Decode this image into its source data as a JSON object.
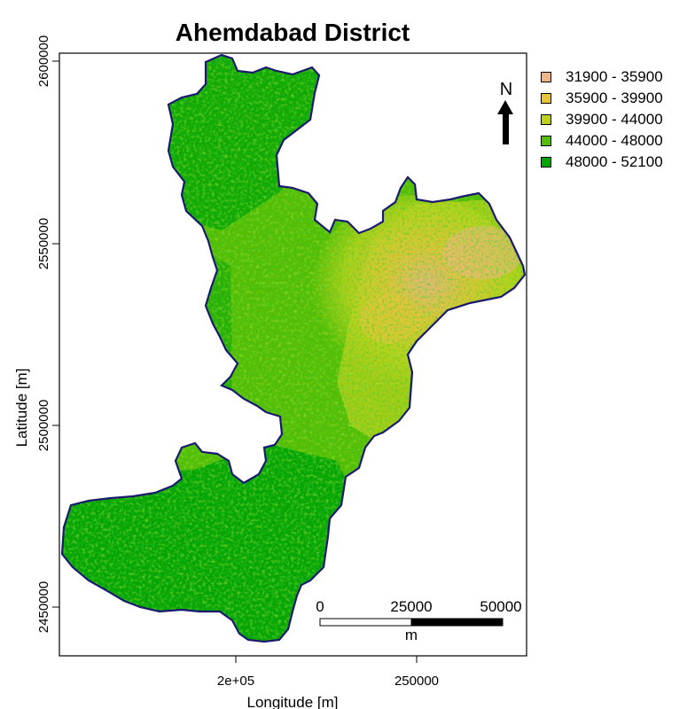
{
  "title": "Ahemdabad District",
  "xlabel": "Longitude [m]",
  "ylabel": "Latitude [m]",
  "x_ticks": [
    "2e+05",
    "250000"
  ],
  "y_ticks": [
    "2450000",
    "2500000",
    "2550000",
    "2600000"
  ],
  "north_arrow": {
    "label": "N",
    "icon": "north-arrow-icon"
  },
  "scale_bar": {
    "labels": [
      "0",
      "25000",
      "50000"
    ],
    "unit": "m"
  },
  "legend": [
    {
      "label": "31900 - 35900",
      "color": "#f0b48c"
    },
    {
      "label": "35900 - 39900",
      "color": "#e6c43c"
    },
    {
      "label": "39900 - 44000",
      "color": "#bcd21e"
    },
    {
      "label": "44000 - 48000",
      "color": "#55bd05"
    },
    {
      "label": "48000 - 52100",
      "color": "#05a405"
    }
  ],
  "colors": {
    "boundary": "#1a1a6e",
    "frame": "#000000"
  }
}
